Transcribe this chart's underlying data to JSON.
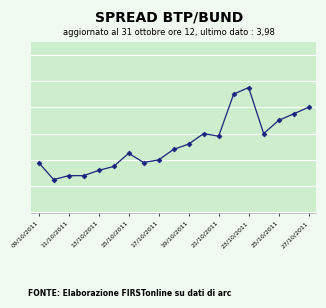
{
  "title": "SPREAD BTP/BUND",
  "subtitle": "aggiornato al 31 ottobre ore 12, ultimo dato : 3,98",
  "footer": "FONTE: Elaborazione FIRSTonline su dati di arc",
  "x_values": [
    0,
    1,
    2,
    3,
    4,
    5,
    6,
    7,
    8,
    9,
    10,
    11,
    12,
    13,
    14,
    15,
    16,
    17,
    18
  ],
  "y_values": [
    3.58,
    3.45,
    3.48,
    3.48,
    3.52,
    3.55,
    3.65,
    3.58,
    3.6,
    3.68,
    3.72,
    3.8,
    3.78,
    4.1,
    4.15,
    3.8,
    3.9,
    3.95,
    4.0
  ],
  "x_tick_positions": [
    0,
    2,
    4,
    6,
    8,
    10,
    12,
    14,
    16,
    18
  ],
  "x_tick_labels": [
    "09/10/2011",
    "11/10/2011",
    "13/10/2011",
    "15/10/2011",
    "17/10/2011",
    "19/10/2011",
    "21/10/2011",
    "23/10/2011",
    "25/10/2011",
    "27/10/2011"
  ],
  "ylim": [
    3.2,
    4.5
  ],
  "yticks": [
    3.2,
    3.4,
    3.6,
    3.8,
    4.0,
    4.2,
    4.4
  ],
  "line_color": "#1a237e",
  "marker_color": "#1a237e",
  "fig_bg_color": "#f0faf0",
  "plot_bg_color": "#cceecc",
  "grid_color": "#ffffff",
  "title_fontsize": 10,
  "subtitle_fontsize": 6,
  "footer_fontsize": 5.5,
  "tick_fontsize": 4.5
}
